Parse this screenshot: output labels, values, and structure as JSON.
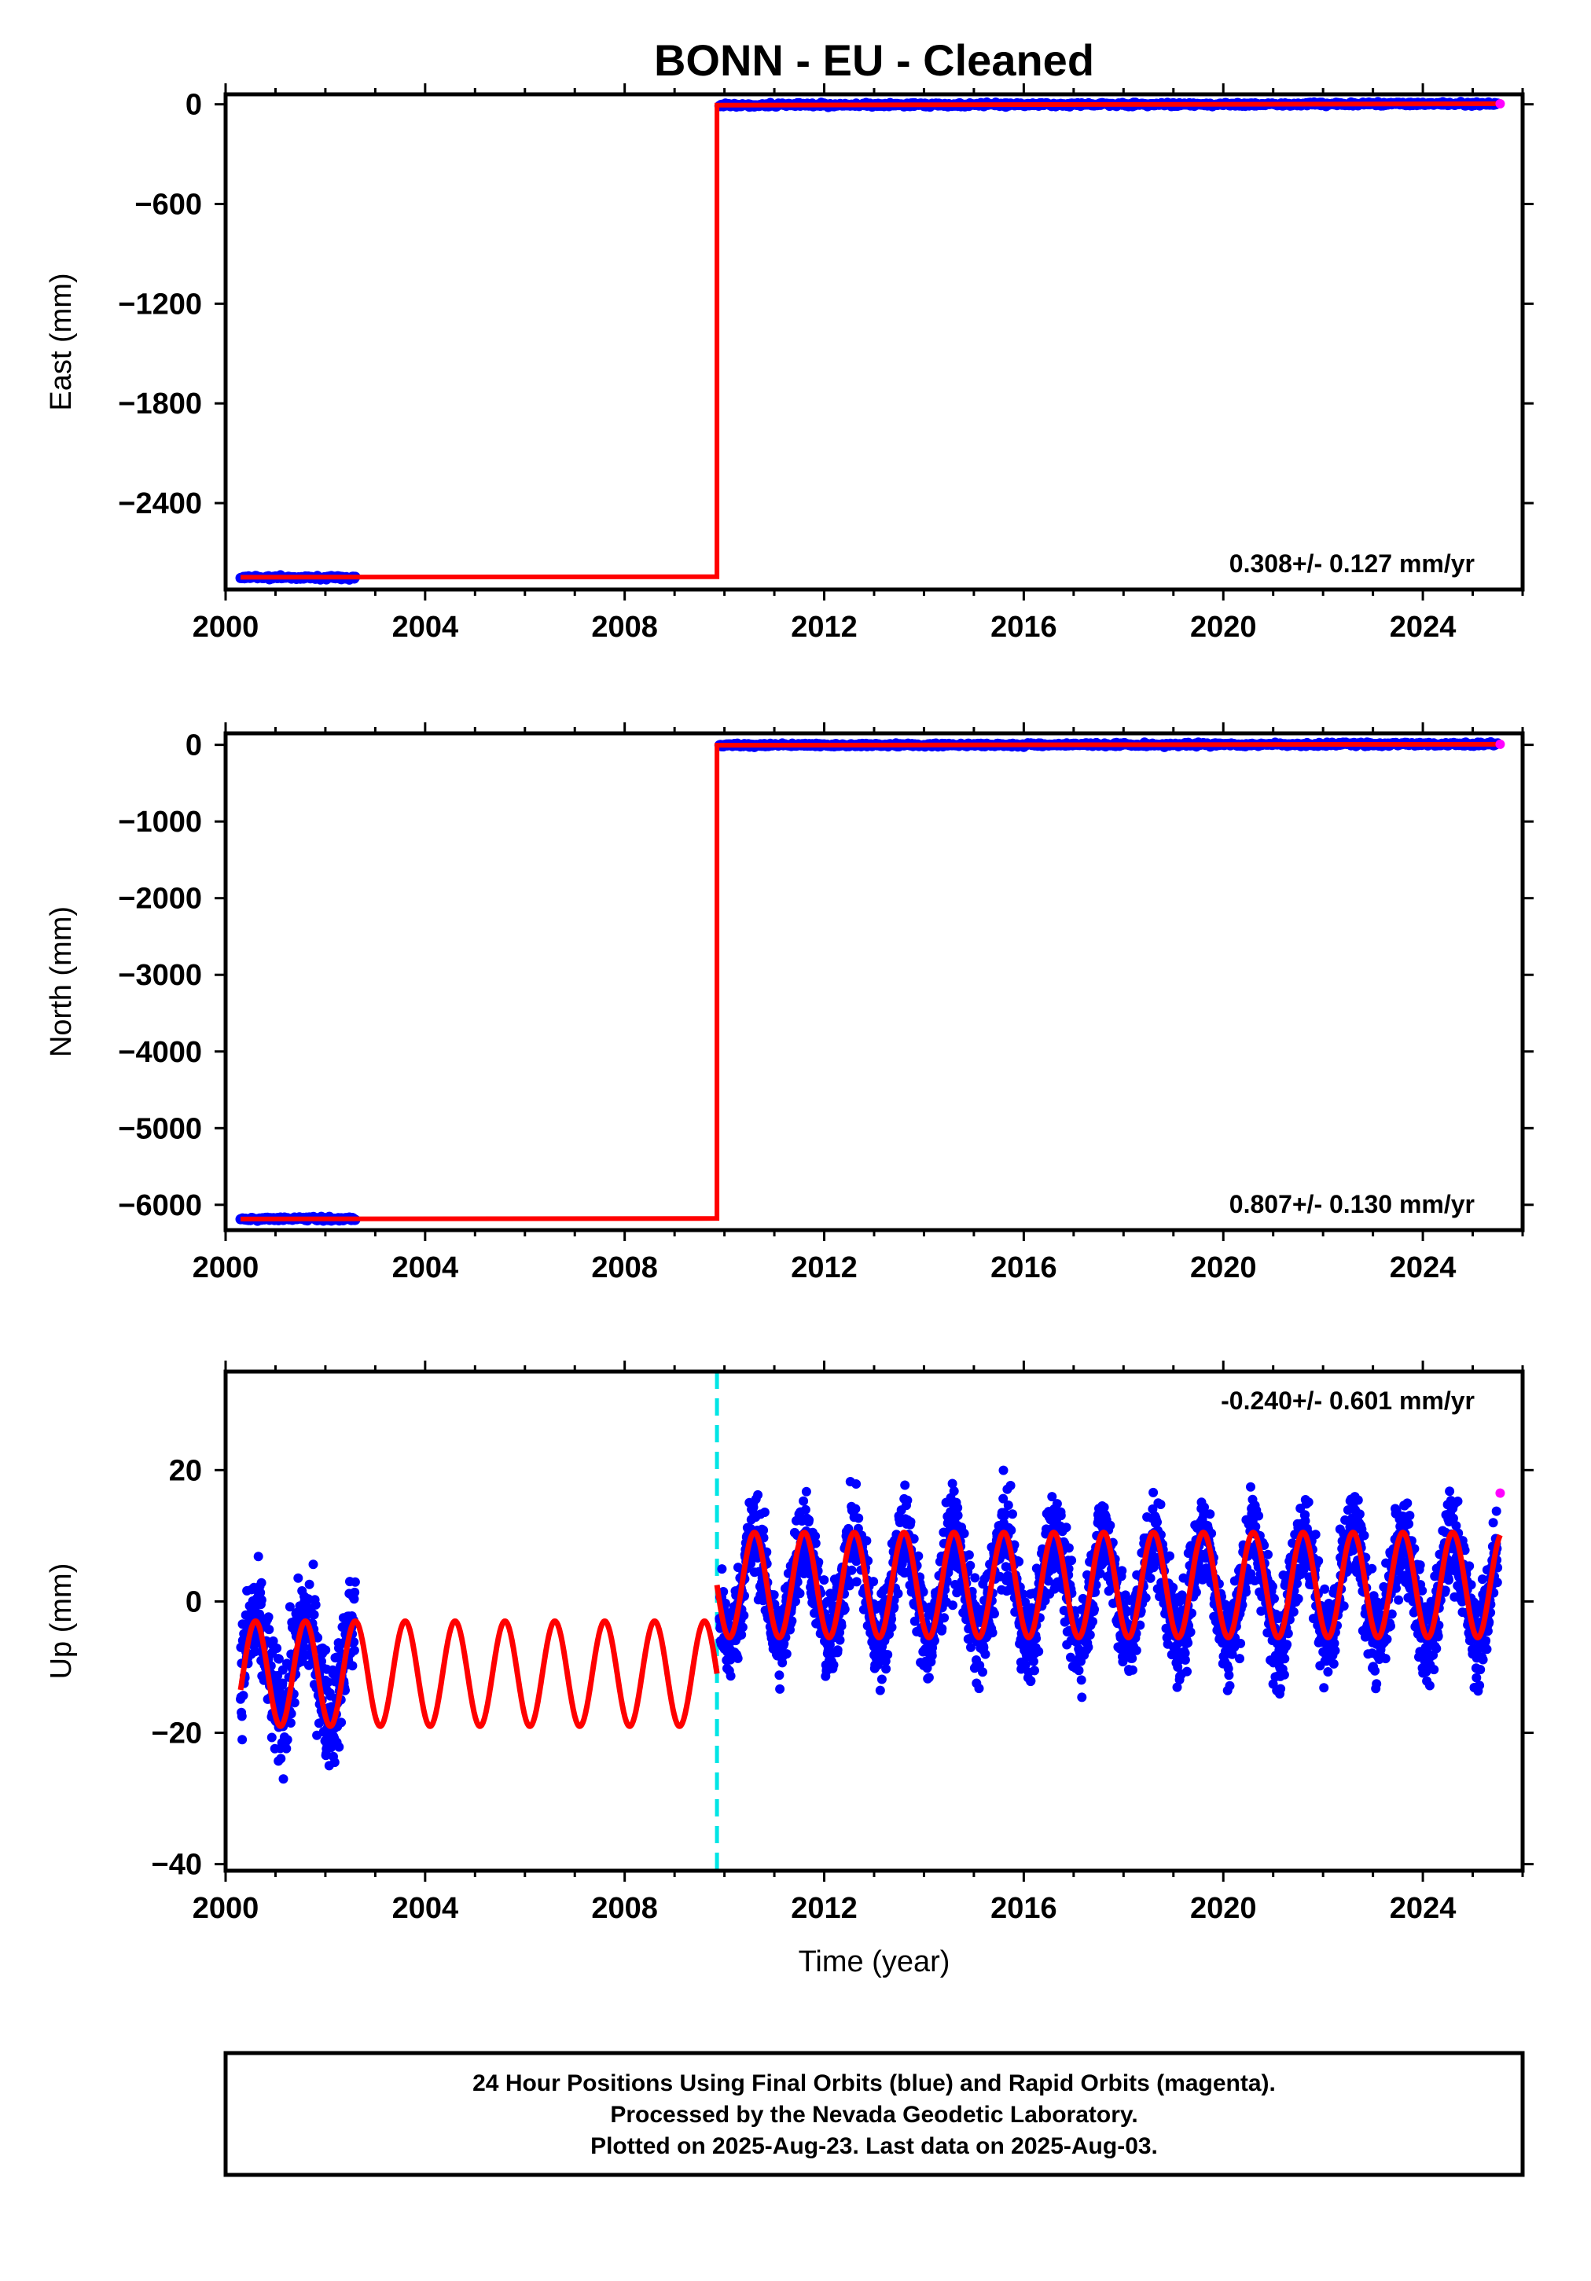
{
  "title": "BONN  - EU - Cleaned",
  "colors": {
    "final_orbits": "#0000ff",
    "rapid_orbits": "#ff00ff",
    "model": "#ff0000",
    "offset_marker": "#00e5e5"
  },
  "x_axis": {
    "label": "Time (year)",
    "ticks": [
      2000,
      2004,
      2008,
      2012,
      2016,
      2020,
      2024
    ],
    "range": [
      2000,
      2026
    ]
  },
  "offset_epoch": 2009.85,
  "chart_data": [
    {
      "type": "scatter",
      "component": "east",
      "ylabel": "East (mm)",
      "rate_text": "0.308+/- 0.127 mm/yr",
      "ylim": [
        -2920,
        60
      ],
      "yticks": [
        0,
        -600,
        -1200,
        -1800,
        -2400
      ],
      "grid": false,
      "series": [
        {
          "name": "Final Orbits (blue)",
          "segments": [
            {
              "x_start": 2000.3,
              "x_end": 2002.6,
              "y_start": -2846,
              "y_end": -2850
            },
            {
              "x_start": 2009.9,
              "x_end": 2025.5,
              "y_start": -5,
              "y_end": 3
            }
          ]
        },
        {
          "name": "Rapid Orbits (magenta)",
          "x": [
            2025.55
          ],
          "y": [
            3
          ]
        },
        {
          "name": "model",
          "segments": [
            {
              "x_start": 2000.3,
              "x_end": 2009.85,
              "y_start": -2846,
              "y_end": -2843
            },
            {
              "x_start": 2009.85,
              "x_end": 2025.55,
              "y_start": -5,
              "y_end": 3
            }
          ]
        }
      ]
    },
    {
      "type": "scatter",
      "component": "north",
      "ylabel": "North (mm)",
      "rate_text": "0.807+/- 0.130 mm/yr",
      "ylim": [
        -6330,
        150
      ],
      "yticks": [
        0,
        -1000,
        -2000,
        -3000,
        -4000,
        -5000,
        -6000
      ],
      "grid": false,
      "series": [
        {
          "name": "Final Orbits (blue)",
          "segments": [
            {
              "x_start": 2000.3,
              "x_end": 2002.6,
              "y_start": -6185,
              "y_end": -6183
            },
            {
              "x_start": 2009.9,
              "x_end": 2025.5,
              "y_start": -5,
              "y_end": 8
            }
          ]
        },
        {
          "name": "Rapid Orbits (magenta)",
          "x": [
            2025.55
          ],
          "y": [
            8
          ]
        },
        {
          "name": "model",
          "segments": [
            {
              "x_start": 2000.3,
              "x_end": 2009.85,
              "y_start": -6185,
              "y_end": -6178
            },
            {
              "x_start": 2009.85,
              "x_end": 2025.55,
              "y_start": -5,
              "y_end": 8
            }
          ]
        }
      ]
    },
    {
      "type": "scatter",
      "component": "up",
      "ylabel": "Up (mm)",
      "rate_text": "-0.240+/- 0.601 mm/yr",
      "ylim": [
        -41,
        35
      ],
      "yticks": [
        20,
        0,
        -20,
        -40
      ],
      "grid": false,
      "series": [
        {
          "name": "Final Orbits (blue)",
          "clusters": [
            {
              "x_start": 2000.3,
              "x_end": 2002.6,
              "mean": -10,
              "amplitude": 7,
              "spread": 6
            },
            {
              "x_start": 2009.9,
              "x_end": 2025.5,
              "mean": 2,
              "amplitude": 8,
              "spread": 5
            }
          ]
        },
        {
          "name": "Rapid Orbits (magenta)",
          "x": [
            2025.55
          ],
          "y": [
            16.5
          ]
        },
        {
          "name": "model",
          "segments": [
            {
              "x_start": 2000.3,
              "x_end": 2009.85,
              "mean": -11,
              "amplitude": 8
            },
            {
              "x_start": 2009.85,
              "x_end": 2025.55,
              "mean": 2.5,
              "amplitude": 8
            }
          ]
        }
      ]
    }
  ],
  "footer": {
    "line1": "24 Hour Positions Using Final Orbits (blue) and Rapid Orbits (magenta).",
    "line2": "Processed by the Nevada Geodetic Laboratory.",
    "line3": "Plotted on 2025-Aug-23. Last data on 2025-Aug-03."
  }
}
